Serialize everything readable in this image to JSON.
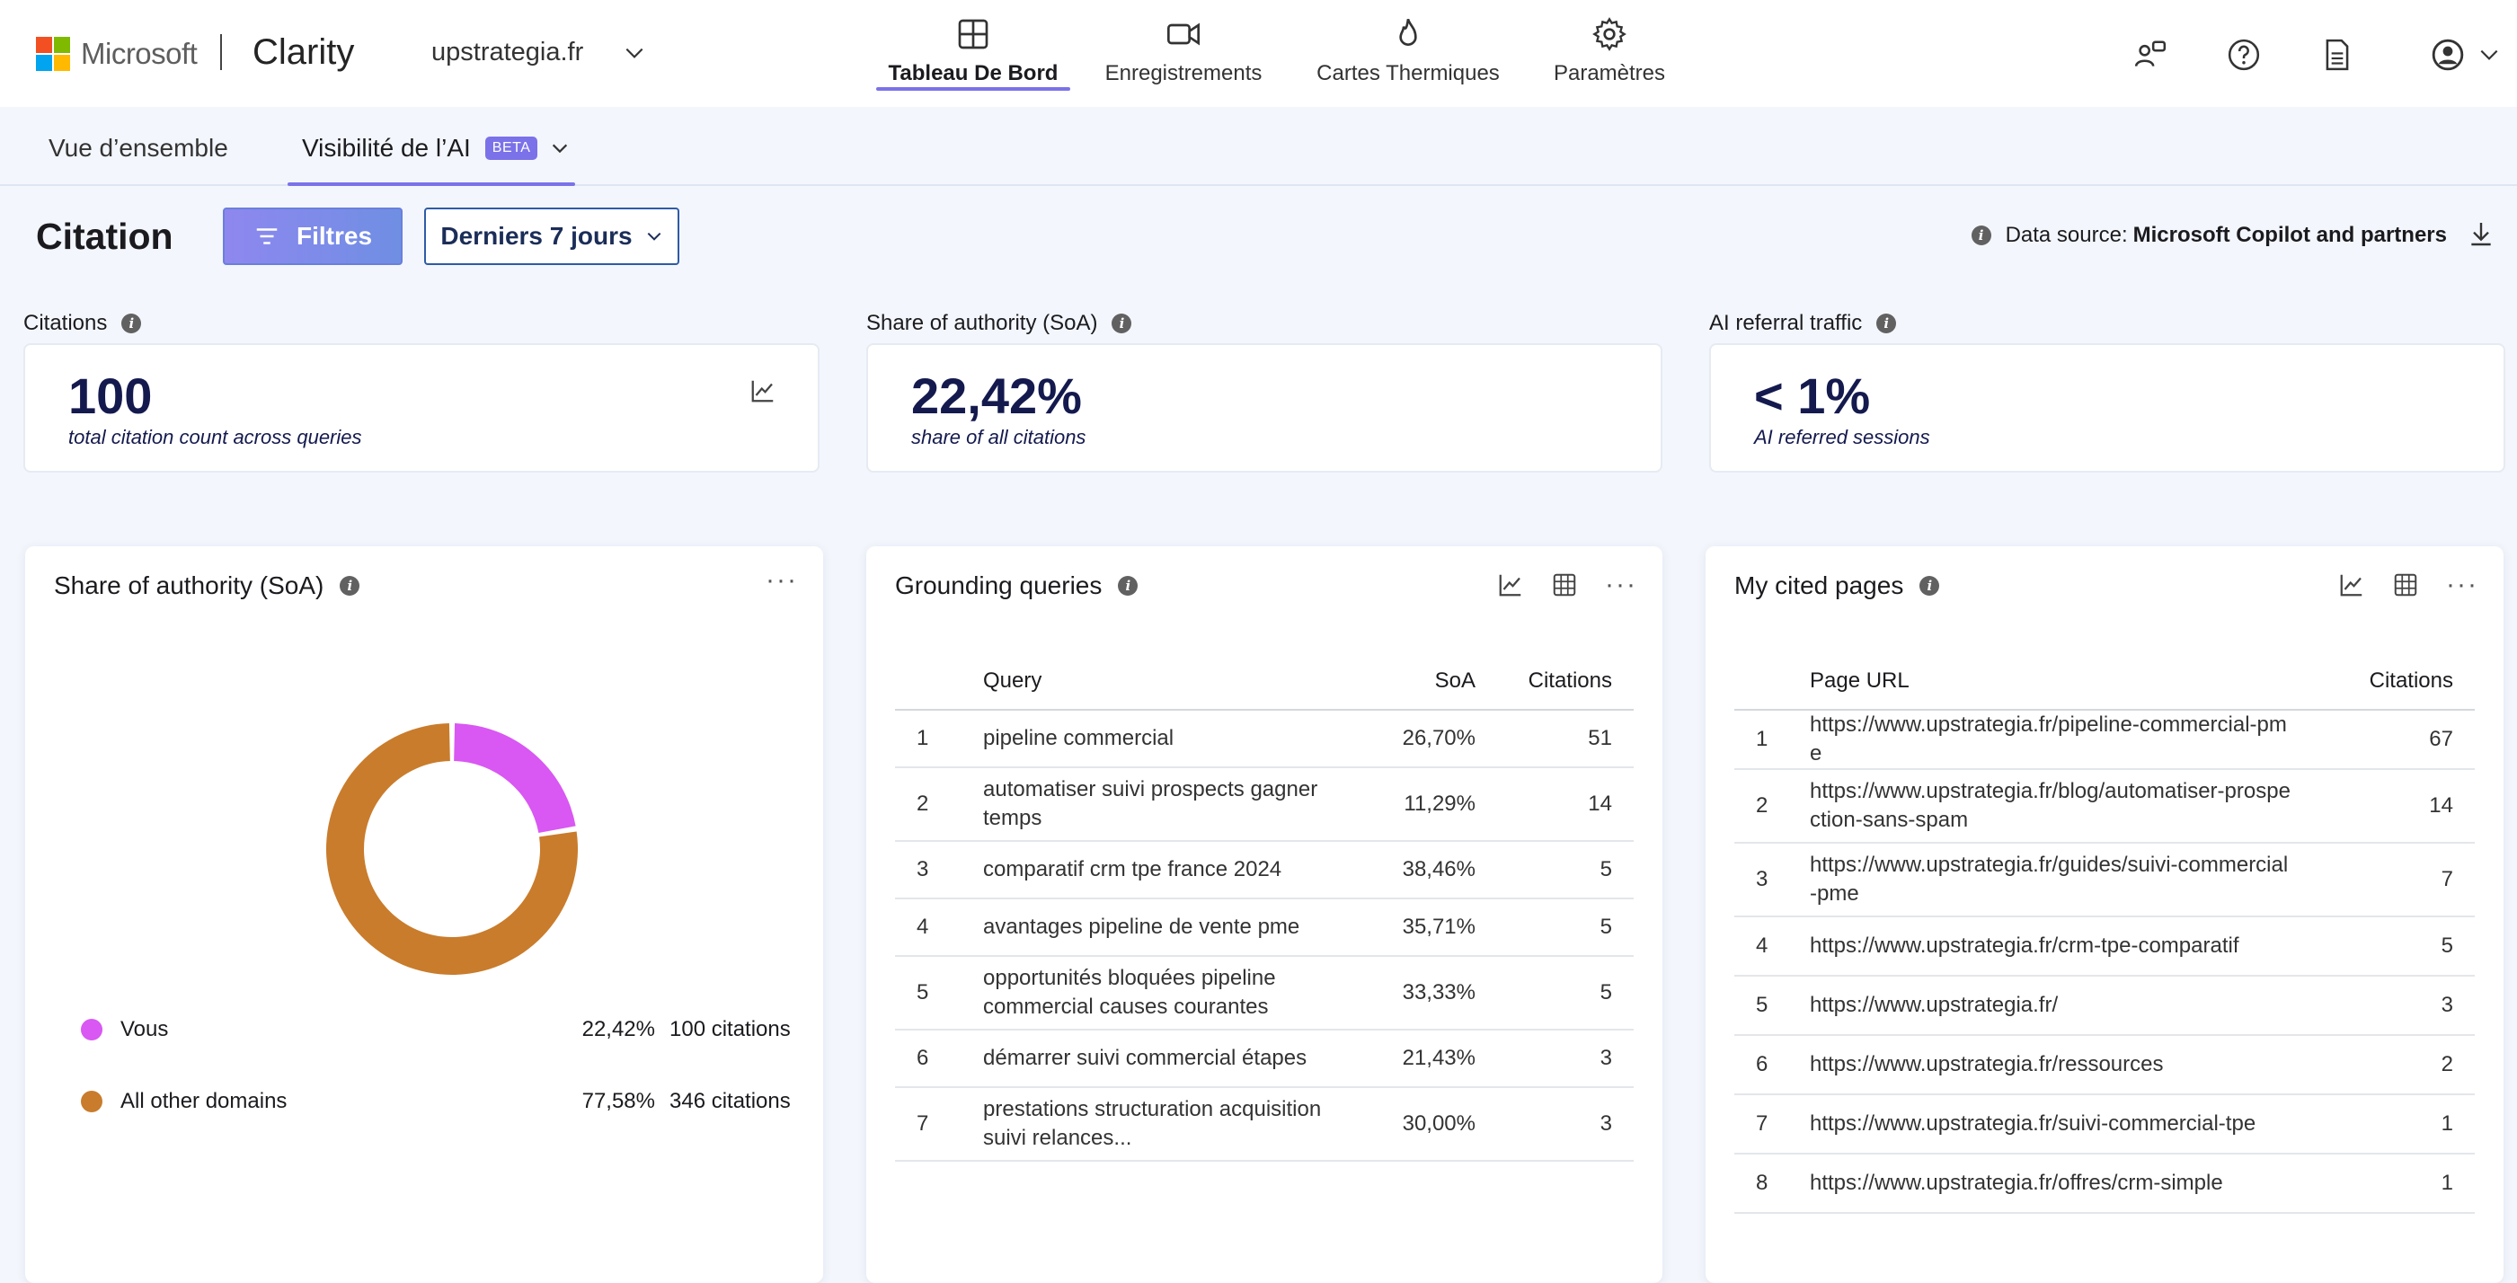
{
  "header": {
    "ms_word": "Microsoft",
    "brand": "Clarity",
    "project": "upstrategia.fr",
    "ms_colors": [
      "#f25022",
      "#7fba00",
      "#00a4ef",
      "#ffb900"
    ],
    "nav": [
      {
        "label": "Tableau De Bord",
        "icon": "dashboard-icon",
        "active": true
      },
      {
        "label": "Enregistrements",
        "icon": "video-icon"
      },
      {
        "label": "Cartes Thermiques",
        "icon": "flame-icon"
      },
      {
        "label": "Paramètres",
        "icon": "gear-icon"
      }
    ],
    "right_icons": [
      "people-icon",
      "help-icon",
      "document-icon",
      "account-icon"
    ]
  },
  "subtabs": {
    "overview": "Vue d’ensemble",
    "ai_visibility": "Visibilité de l’AI",
    "beta": "BETA"
  },
  "toolbar": {
    "title": "Citation",
    "filter_label": "Filtres",
    "range_label": "Derniers 7 jours",
    "datasource_prefix": "Data source:",
    "datasource_value": "Microsoft Copilot and partners"
  },
  "kpis": [
    {
      "label": "Citations",
      "value": "100",
      "sub": "total citation count across queries"
    },
    {
      "label": "Share of authority (SoA)",
      "value": "22,42%",
      "sub": "share of all citations"
    },
    {
      "label": "AI referral traffic",
      "value": "< 1%",
      "sub": "AI referred sessions"
    }
  ],
  "soa_panel": {
    "title": "Share of authority (SoA)",
    "legend": [
      {
        "name": "Vous",
        "pct": "22,42%",
        "count": "100 citations",
        "color": "#d957f2",
        "value": 22.42
      },
      {
        "name": "All other domains",
        "pct": "77,58%",
        "count": "346 citations",
        "color": "#c97c2c",
        "value": 77.58
      }
    ]
  },
  "queries_panel": {
    "title": "Grounding queries",
    "columns": [
      "Query",
      "SoA",
      "Citations"
    ],
    "rows": [
      {
        "idx": "1",
        "query": "pipeline commercial",
        "soa": "26,70%",
        "citations": "51"
      },
      {
        "idx": "2",
        "query": "automatiser suivi prospects gagner temps",
        "soa": "11,29%",
        "citations": "14"
      },
      {
        "idx": "3",
        "query": "comparatif crm tpe france 2024",
        "soa": "38,46%",
        "citations": "5"
      },
      {
        "idx": "4",
        "query": "avantages pipeline de vente pme",
        "soa": "35,71%",
        "citations": "5"
      },
      {
        "idx": "5",
        "query": "opportunités bloquées pipeline commercial causes courantes",
        "soa": "33,33%",
        "citations": "5"
      },
      {
        "idx": "6",
        "query": "démarrer suivi commercial étapes",
        "soa": "21,43%",
        "citations": "3"
      },
      {
        "idx": "7",
        "query": "prestations structuration acquisition suivi relances...",
        "soa": "30,00%",
        "citations": "3"
      }
    ]
  },
  "pages_panel": {
    "title": "My cited pages",
    "columns": [
      "Page URL",
      "Citations"
    ],
    "rows": [
      {
        "idx": "1",
        "url": "https://www.upstrategia.fr/pipeline-commercial-pme",
        "citations": "67"
      },
      {
        "idx": "2",
        "url": "https://www.upstrategia.fr/blog/automatiser-prospection-sans-spam",
        "citations": "14"
      },
      {
        "idx": "3",
        "url": "https://www.upstrategia.fr/guides/suivi-commercial-pme",
        "citations": "7"
      },
      {
        "idx": "4",
        "url": "https://www.upstrategia.fr/crm-tpe-comparatif",
        "citations": "5"
      },
      {
        "idx": "5",
        "url": "https://www.upstrategia.fr/",
        "citations": "3"
      },
      {
        "idx": "6",
        "url": "https://www.upstrategia.fr/ressources",
        "citations": "2"
      },
      {
        "idx": "7",
        "url": "https://www.upstrategia.fr/suivi-commercial-tpe",
        "citations": "1"
      },
      {
        "idx": "8",
        "url": "https://www.upstrategia.fr/offres/crm-simple",
        "citations": "1"
      }
    ]
  }
}
